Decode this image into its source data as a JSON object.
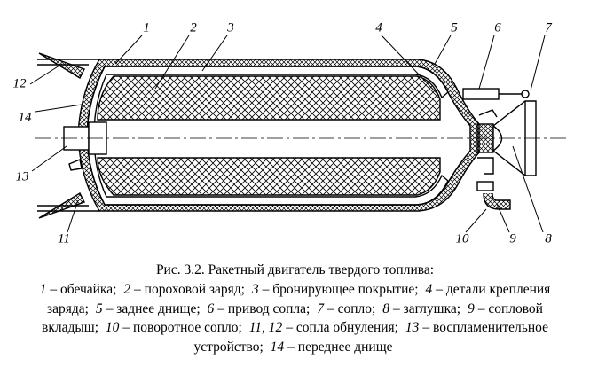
{
  "callouts": [
    "1",
    "2",
    "3",
    "4",
    "5",
    "6",
    "7",
    "8",
    "9",
    "10",
    "11",
    "12",
    "13",
    "14"
  ],
  "caption": {
    "title": "Рис. 3.2. Ракетный двигатель твердого топлива:",
    "items": [
      {
        "num": "1",
        "text": "– обечайка;"
      },
      {
        "num": "2",
        "text": "– пороховой заряд;"
      },
      {
        "num": "3",
        "text": "– бронирующее покрытие;"
      },
      {
        "num": "4",
        "text": "– детали крепления заряда;"
      },
      {
        "num": "5",
        "text": "– заднее днище;"
      },
      {
        "num": "6",
        "text": "– привод сопла;"
      },
      {
        "num": "7",
        "text": "– сопло;"
      },
      {
        "num": "8",
        "text": "– заглушка;"
      },
      {
        "num": "9",
        "text": "– сопловой вкладыш;"
      },
      {
        "num": "10",
        "text": "– поворотное сопло;"
      },
      {
        "num": "11, 12",
        "text": "– сопла обнуления;"
      },
      {
        "num": "13",
        "text": "– воспламенительное устройство;"
      },
      {
        "num": "14",
        "text": "– переднее днище"
      }
    ]
  }
}
